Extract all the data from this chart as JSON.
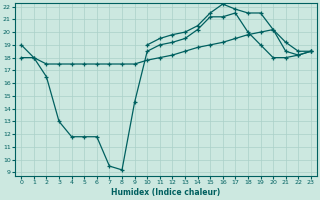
{
  "xlabel": "Humidex (Indice chaleur)",
  "bg_color": "#cce8e0",
  "grid_color": "#aad0c8",
  "line_color": "#006060",
  "ylim": [
    9,
    22
  ],
  "yticks": [
    9,
    10,
    11,
    12,
    13,
    14,
    15,
    16,
    17,
    18,
    19,
    20,
    21,
    22
  ],
  "xticks": [
    0,
    1,
    2,
    3,
    4,
    5,
    6,
    7,
    8,
    9,
    10,
    11,
    12,
    13,
    14,
    15,
    16,
    17,
    18,
    19,
    20,
    21,
    22,
    23
  ],
  "series": [
    {
      "x": [
        0,
        1,
        2,
        3,
        4,
        5,
        6,
        7,
        8,
        9,
        10,
        11,
        12,
        13,
        14,
        15,
        16,
        17,
        18,
        19,
        20,
        21,
        22,
        23
      ],
      "y": [
        19.0,
        18.0,
        16.5,
        13.0,
        11.8,
        11.8,
        11.8,
        9.5,
        9.2,
        14.5,
        18.5,
        19.0,
        19.2,
        19.5,
        20.2,
        21.2,
        21.2,
        21.5,
        20.0,
        19.0,
        18.0,
        18.0,
        18.2,
        18.5
      ]
    },
    {
      "x": [
        0,
        1,
        2,
        3,
        4,
        5,
        6,
        7,
        8,
        9,
        10,
        11,
        12,
        13,
        14,
        15,
        16,
        17,
        18,
        19,
        20,
        21,
        22,
        23
      ],
      "y": [
        18.0,
        18.0,
        17.5,
        17.5,
        17.5,
        17.5,
        17.5,
        17.5,
        17.5,
        17.5,
        17.8,
        18.0,
        18.2,
        18.5,
        18.8,
        19.0,
        19.2,
        19.5,
        19.8,
        20.0,
        20.2,
        18.5,
        18.2,
        18.5
      ]
    },
    {
      "x": [
        10,
        11,
        12,
        13,
        14,
        15,
        16,
        17,
        18,
        19,
        20,
        21,
        22,
        23
      ],
      "y": [
        19.0,
        19.5,
        19.8,
        20.0,
        20.5,
        21.5,
        22.2,
        21.8,
        21.5,
        21.5,
        20.2,
        19.2,
        18.5,
        18.5
      ]
    }
  ]
}
